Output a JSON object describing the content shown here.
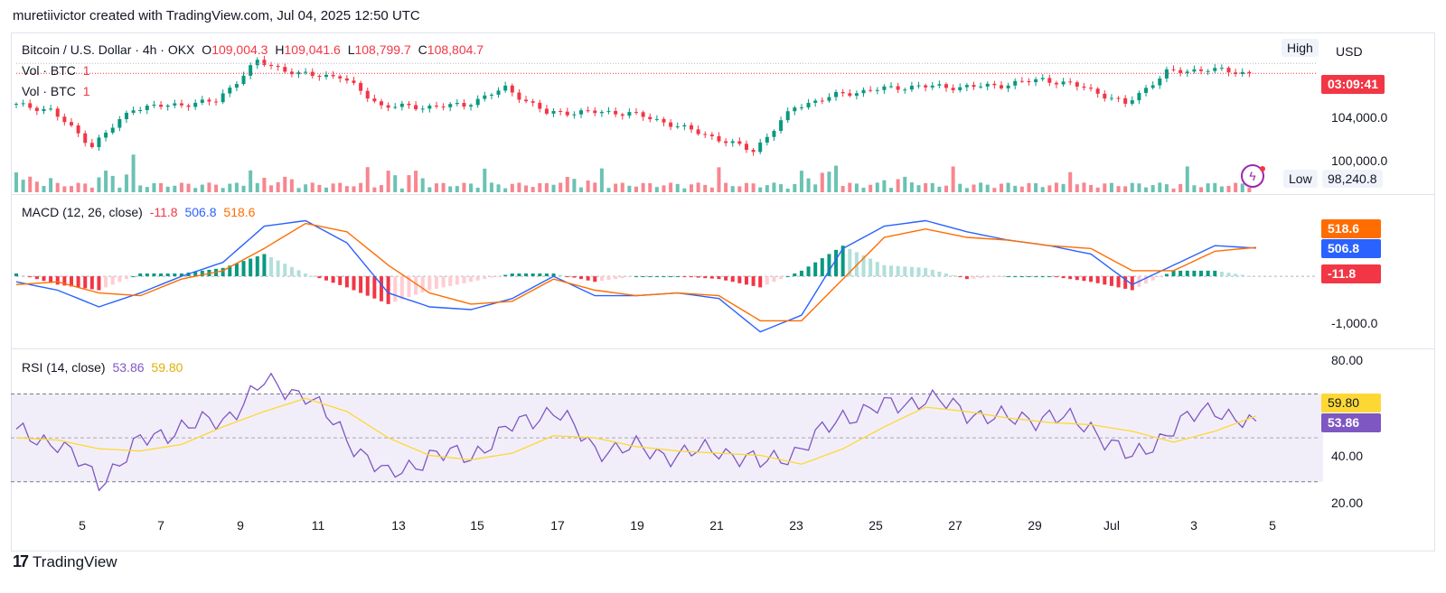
{
  "header": {
    "text": "muretiivictor created with TradingView.com, Jul 04, 2025 12:50 UTC"
  },
  "price_pane": {
    "symbol": "Bitcoin / U.S. Dollar · 4h · OKX",
    "o_label": "O",
    "o_value": "109,004.3",
    "h_label": "H",
    "h_value": "109,041.6",
    "l_label": "L",
    "l_value": "108,799.7",
    "c_label": "C",
    "c_value": "108,804.7",
    "vol1_label": "Vol · BTC",
    "vol1_value": "1",
    "vol2_label": "Vol · BTC",
    "vol2_value": "1",
    "high_label": "High",
    "currency": "USD",
    "countdown": "03:09:41",
    "low_label": "Low",
    "low_value": "98,240.8",
    "axis_labels": [
      "104,000.0",
      "100,000.0"
    ]
  },
  "macd_pane": {
    "title": "MACD (12, 26, close)",
    "hist_value": "-11.8",
    "macd_value": "506.8",
    "signal_value": "518.6",
    "axis_labels": [
      "-1,000.0"
    ],
    "tags": {
      "signal": "518.6",
      "macd": "506.8",
      "hist": "-11.8"
    }
  },
  "rsi_pane": {
    "title": "RSI (14, close)",
    "rsi_value": "53.86",
    "ma_value": "59.80",
    "axis_labels": [
      "80.00",
      "40.00",
      "20.00"
    ],
    "tags": {
      "ma": "59.80",
      "rsi": "53.86"
    }
  },
  "x_labels": [
    "5",
    "7",
    "9",
    "11",
    "13",
    "15",
    "17",
    "19",
    "21",
    "23",
    "25",
    "27",
    "29",
    "Jul",
    "3",
    "5"
  ],
  "footer": {
    "logo": "17",
    "brand": "TradingView"
  },
  "colors": {
    "up": "#089981",
    "down": "#f23645",
    "macd": "#2962ff",
    "signal": "#ff6d00",
    "rsi": "#7e57c2",
    "rsi_ma": "#fdd835"
  },
  "chart_data": [
    {
      "type": "candlestick",
      "title": "Bitcoin / U.S. Dollar · 4h · OKX",
      "x": [
        "Jun 4",
        "Jun 5",
        "Jun 6",
        "Jun 7",
        "Jun 8",
        "Jun 9",
        "Jun 10",
        "Jun 11",
        "Jun 12",
        "Jun 13",
        "Jun 14",
        "Jun 15",
        "Jun 16",
        "Jun 17",
        "Jun 18",
        "Jun 19",
        "Jun 20",
        "Jun 21",
        "Jun 22",
        "Jun 23",
        "Jun 24",
        "Jun 25",
        "Jun 26",
        "Jun 27",
        "Jun 28",
        "Jun 29",
        "Jun 30",
        "Jul 1",
        "Jul 2",
        "Jul 3",
        "Jul 4"
      ],
      "close": [
        105700,
        105100,
        101500,
        105300,
        105600,
        106000,
        110000,
        108700,
        108500,
        105500,
        105400,
        105600,
        107300,
        104800,
        104900,
        104800,
        103700,
        102400,
        101000,
        105400,
        106600,
        107200,
        107500,
        107400,
        107600,
        108200,
        107400,
        105700,
        108900,
        109200,
        108800
      ],
      "ylim": [
        98000,
        112000
      ]
    },
    {
      "type": "bar",
      "title": "Vol · BTC",
      "series": [
        {
          "values": [
            2,
            1,
            3,
            1,
            1,
            1,
            2,
            1,
            1,
            3,
            1,
            1,
            1,
            2,
            1,
            1,
            1,
            1,
            1,
            3,
            1,
            2,
            1,
            1,
            1,
            1,
            1,
            1,
            1,
            1,
            1
          ]
        }
      ]
    },
    {
      "type": "line",
      "title": "MACD (12, 26, close)",
      "x": [
        "Jun 4",
        "Jun 5",
        "Jun 6",
        "Jun 7",
        "Jun 8",
        "Jun 9",
        "Jun 10",
        "Jun 11",
        "Jun 12",
        "Jun 13",
        "Jun 14",
        "Jun 15",
        "Jun 16",
        "Jun 17",
        "Jun 18",
        "Jun 19",
        "Jun 20",
        "Jun 21",
        "Jun 22",
        "Jun 23",
        "Jun 24",
        "Jun 25",
        "Jun 26",
        "Jun 27",
        "Jun 28",
        "Jun 29",
        "Jun 30",
        "Jul 1",
        "Jul 2",
        "Jul 3",
        "Jul 4"
      ],
      "series": [
        {
          "name": "MACD",
          "values": [
            -100,
            -250,
            -550,
            -300,
            0,
            250,
            900,
            1000,
            600,
            -300,
            -550,
            -600,
            -400,
            0,
            -350,
            -350,
            -300,
            -400,
            -1000,
            -700,
            500,
            900,
            1000,
            800,
            650,
            550,
            400,
            -150,
            200,
            550,
            507
          ]
        },
        {
          "name": "Signal",
          "values": [
            -150,
            -100,
            -300,
            -350,
            -50,
            100,
            500,
            950,
            800,
            200,
            -300,
            -500,
            -450,
            -50,
            -250,
            -350,
            -300,
            -350,
            -800,
            -800,
            -50,
            700,
            850,
            700,
            650,
            550,
            500,
            100,
            100,
            450,
            519
          ]
        },
        {
          "name": "Histogram",
          "values": [
            50,
            -150,
            -250,
            50,
            50,
            150,
            400,
            50,
            -200,
            -500,
            -250,
            -100,
            50,
            50,
            -100,
            0,
            0,
            -50,
            -200,
            100,
            550,
            200,
            150,
            -50,
            0,
            0,
            -100,
            -250,
            100,
            100,
            -12
          ]
        }
      ],
      "ylim": [
        -1200,
        1300
      ]
    },
    {
      "type": "line",
      "title": "RSI (14, close)",
      "x": [
        "Jun 4",
        "Jun 5",
        "Jun 6",
        "Jun 7",
        "Jun 8",
        "Jun 9",
        "Jun 10",
        "Jun 11",
        "Jun 12",
        "Jun 13",
        "Jun 14",
        "Jun 15",
        "Jun 16",
        "Jun 17",
        "Jun 18",
        "Jun 19",
        "Jun 20",
        "Jun 21",
        "Jun 22",
        "Jun 23",
        "Jun 24",
        "Jun 25",
        "Jun 26",
        "Jun 27",
        "Jun 28",
        "Jun 29",
        "Jun 30",
        "Jul 1",
        "Jul 2",
        "Jul 3",
        "Jul 4"
      ],
      "series": [
        {
          "name": "RSI",
          "values": [
            52,
            48,
            30,
            48,
            55,
            58,
            75,
            70,
            50,
            32,
            42,
            42,
            55,
            63,
            45,
            45,
            42,
            45,
            38,
            45,
            60,
            64,
            68,
            62,
            58,
            60,
            55,
            40,
            55,
            64,
            54
          ]
        },
        {
          "name": "RSI MA",
          "values": [
            50,
            49,
            45,
            44,
            47,
            55,
            62,
            68,
            62,
            50,
            42,
            40,
            43,
            51,
            50,
            46,
            44,
            43,
            42,
            38,
            45,
            55,
            64,
            62,
            59,
            57,
            56,
            53,
            48,
            53,
            60
          ]
        }
      ],
      "ylim": [
        20,
        85
      ]
    }
  ]
}
